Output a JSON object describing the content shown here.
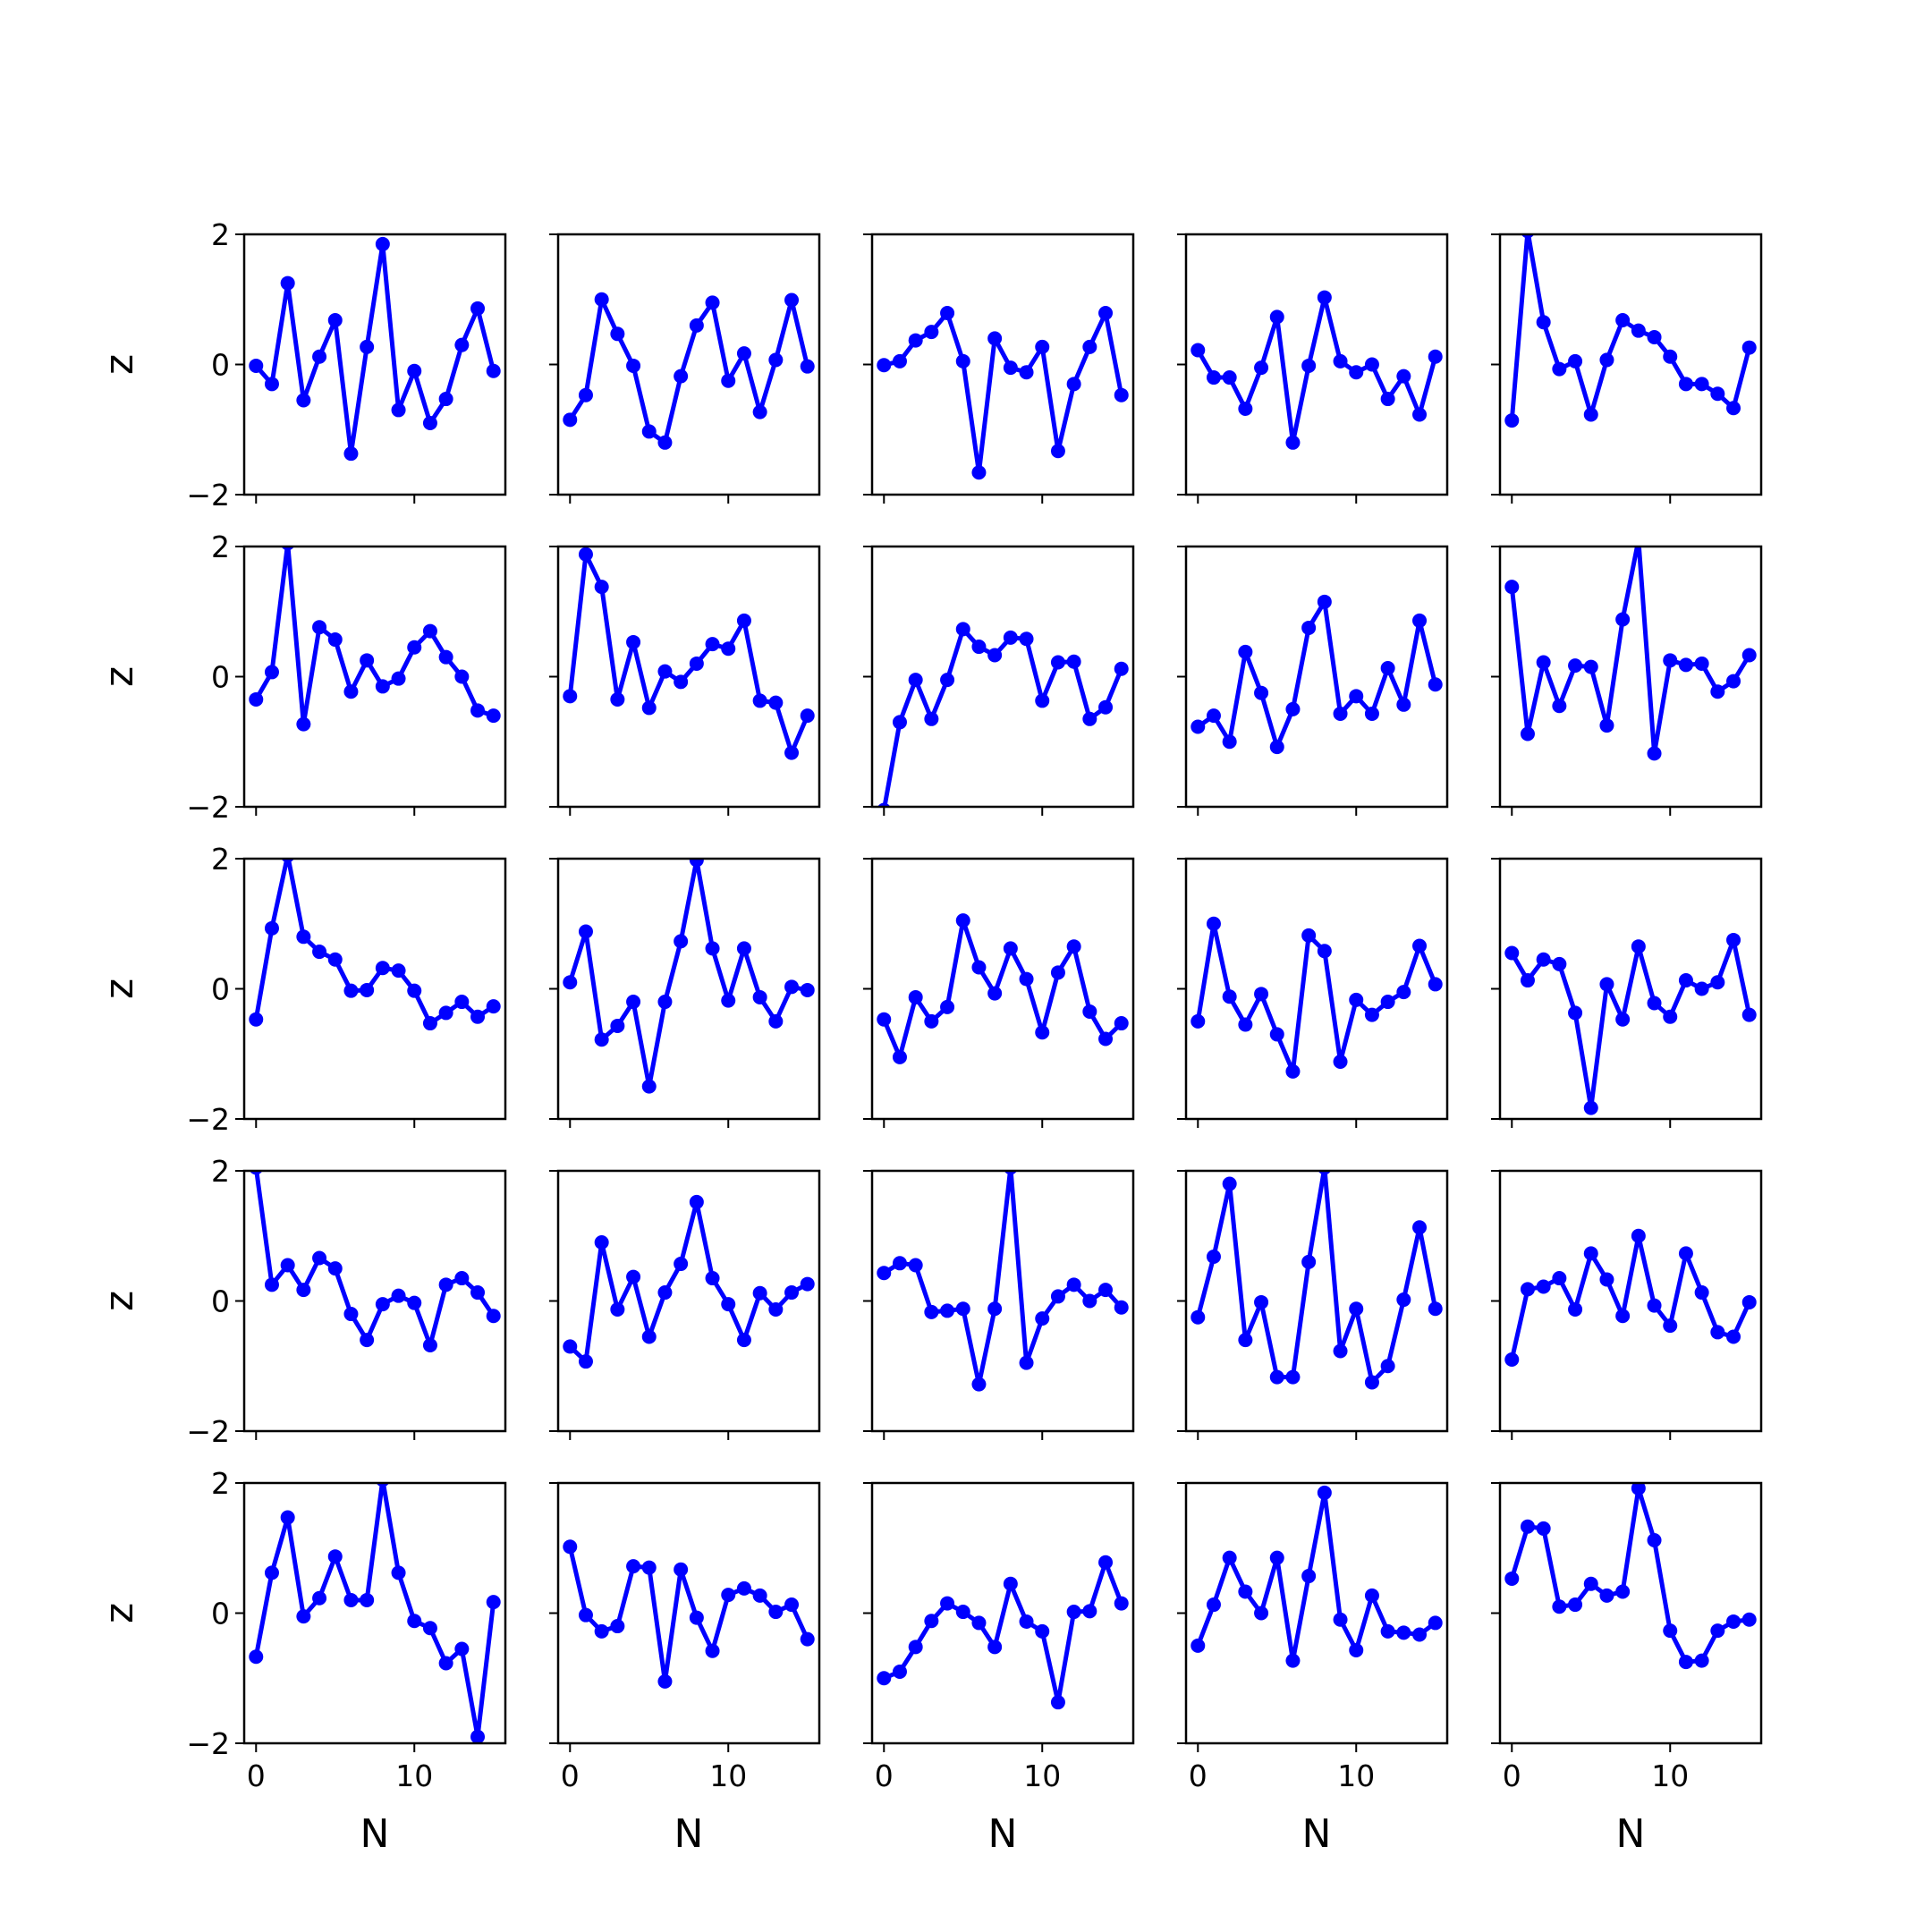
{
  "chart_data": {
    "type": "line",
    "layout": "5x5 grid of subplots",
    "xlabel": "N",
    "ylabel": "z",
    "xlim": [
      -0.75,
      15.75
    ],
    "ylim": [
      -2,
      2
    ],
    "xticks": [
      0,
      10
    ],
    "yticks": [
      -2,
      0,
      2
    ],
    "ytick_labels": [
      "−2",
      "0",
      "2"
    ],
    "xtick_labels": [
      "0",
      "10"
    ],
    "color": "#0000ff",
    "marker": "circle",
    "x": [
      0,
      1,
      2,
      3,
      4,
      5,
      6,
      7,
      8,
      9,
      10,
      11,
      12,
      13,
      14,
      15
    ],
    "panels": [
      {
        "row": 0,
        "col": 0,
        "values": [
          -0.02,
          -0.3,
          1.25,
          -0.55,
          0.12,
          0.68,
          -1.37,
          0.27,
          1.85,
          -0.7,
          -0.1,
          -0.9,
          -0.53,
          0.3,
          0.86,
          -0.1
        ]
      },
      {
        "row": 0,
        "col": 1,
        "values": [
          -0.85,
          -0.47,
          1.0,
          0.47,
          -0.02,
          -1.03,
          -1.2,
          -0.18,
          0.6,
          0.95,
          -0.25,
          0.17,
          -0.73,
          0.07,
          0.99,
          -0.03
        ]
      },
      {
        "row": 0,
        "col": 2,
        "values": [
          -0.01,
          0.05,
          0.37,
          0.5,
          0.79,
          0.05,
          -1.66,
          0.4,
          -0.05,
          -0.12,
          0.27,
          -1.33,
          -0.3,
          0.27,
          0.79,
          -0.47
        ]
      },
      {
        "row": 0,
        "col": 3,
        "values": [
          0.22,
          -0.2,
          -0.2,
          -0.68,
          -0.05,
          0.73,
          -1.2,
          -0.02,
          1.03,
          0.05,
          -0.12,
          0.0,
          -0.53,
          -0.18,
          -0.77,
          0.12
        ]
      },
      {
        "row": 0,
        "col": 4,
        "values": [
          -0.86,
          2.05,
          0.65,
          -0.07,
          0.05,
          -0.77,
          0.07,
          0.68,
          0.52,
          0.42,
          0.12,
          -0.3,
          -0.3,
          -0.45,
          -0.67,
          0.26
        ]
      },
      {
        "row": 1,
        "col": 0,
        "values": [
          -0.35,
          0.07,
          2.05,
          -0.73,
          0.76,
          0.57,
          -0.23,
          0.25,
          -0.15,
          -0.03,
          0.45,
          0.7,
          0.3,
          0.0,
          -0.52,
          -0.6
        ]
      },
      {
        "row": 1,
        "col": 1,
        "values": [
          -0.3,
          1.88,
          1.38,
          -0.35,
          0.53,
          -0.48,
          0.08,
          -0.08,
          0.2,
          0.5,
          0.43,
          0.86,
          -0.37,
          -0.4,
          -1.17,
          -0.6
        ]
      },
      {
        "row": 1,
        "col": 2,
        "values": [
          -2.05,
          -0.7,
          -0.05,
          -0.65,
          -0.05,
          0.73,
          0.46,
          0.33,
          0.6,
          0.58,
          -0.37,
          0.22,
          0.23,
          -0.65,
          -0.47,
          0.12
        ]
      },
      {
        "row": 1,
        "col": 3,
        "values": [
          -0.77,
          -0.6,
          -1.0,
          0.38,
          -0.25,
          -1.08,
          -0.5,
          0.75,
          1.15,
          -0.57,
          -0.3,
          -0.57,
          0.13,
          -0.43,
          0.86,
          -0.12
        ]
      },
      {
        "row": 1,
        "col": 4,
        "values": [
          1.38,
          -0.88,
          0.22,
          -0.45,
          0.17,
          0.15,
          -0.75,
          0.88,
          2.1,
          -1.18,
          0.25,
          0.18,
          0.2,
          -0.23,
          -0.07,
          0.33
        ]
      },
      {
        "row": 2,
        "col": 0,
        "values": [
          -0.47,
          0.93,
          2.05,
          0.8,
          0.57,
          0.45,
          -0.03,
          -0.02,
          0.32,
          0.28,
          -0.03,
          -0.53,
          -0.37,
          -0.2,
          -0.43,
          -0.27
        ]
      },
      {
        "row": 2,
        "col": 1,
        "values": [
          0.1,
          0.88,
          -0.78,
          -0.57,
          -0.2,
          -1.5,
          -0.2,
          0.73,
          1.98,
          0.62,
          -0.18,
          0.62,
          -0.13,
          -0.5,
          0.03,
          -0.02
        ]
      },
      {
        "row": 2,
        "col": 2,
        "values": [
          -0.47,
          -1.05,
          -0.13,
          -0.5,
          -0.28,
          1.05,
          0.33,
          -0.07,
          0.62,
          0.15,
          -0.67,
          0.25,
          0.65,
          -0.35,
          -0.77,
          -0.53
        ]
      },
      {
        "row": 2,
        "col": 3,
        "values": [
          -0.5,
          1.0,
          -0.12,
          -0.55,
          -0.08,
          -0.7,
          -1.27,
          0.82,
          0.58,
          -1.12,
          -0.17,
          -0.4,
          -0.2,
          -0.05,
          0.66,
          0.07
        ]
      },
      {
        "row": 2,
        "col": 4,
        "values": [
          0.55,
          0.13,
          0.45,
          0.38,
          -0.37,
          -1.83,
          0.07,
          -0.47,
          0.65,
          -0.22,
          -0.43,
          0.13,
          0.0,
          0.1,
          0.75,
          -0.4
        ]
      },
      {
        "row": 3,
        "col": 0,
        "values": [
          2.05,
          0.25,
          0.55,
          0.17,
          0.66,
          0.5,
          -0.2,
          -0.6,
          -0.05,
          0.08,
          -0.03,
          -0.68,
          0.25,
          0.35,
          0.13,
          -0.23
        ]
      },
      {
        "row": 3,
        "col": 1,
        "values": [
          -0.7,
          -0.93,
          0.9,
          -0.13,
          0.37,
          -0.55,
          0.13,
          0.57,
          1.52,
          0.35,
          -0.05,
          -0.6,
          0.12,
          -0.13,
          0.13,
          0.26
        ]
      },
      {
        "row": 3,
        "col": 2,
        "values": [
          0.43,
          0.58,
          0.55,
          -0.17,
          -0.15,
          -0.12,
          -1.28,
          -0.12,
          2.05,
          -0.95,
          -0.27,
          0.07,
          0.25,
          0.0,
          0.17,
          -0.1
        ]
      },
      {
        "row": 3,
        "col": 3,
        "values": [
          -0.25,
          0.68,
          1.8,
          -0.6,
          -0.02,
          -1.17,
          -1.17,
          0.6,
          2.05,
          -0.77,
          -0.12,
          -1.25,
          -1.0,
          0.02,
          1.13,
          -0.12
        ]
      },
      {
        "row": 3,
        "col": 4,
        "values": [
          -0.9,
          0.18,
          0.22,
          0.35,
          -0.13,
          0.73,
          0.33,
          -0.23,
          1.0,
          -0.07,
          -0.38,
          0.73,
          0.13,
          -0.48,
          -0.55,
          -0.02
        ]
      },
      {
        "row": 4,
        "col": 0,
        "values": [
          -0.67,
          0.62,
          1.47,
          -0.05,
          0.23,
          0.87,
          0.2,
          0.2,
          2.05,
          0.62,
          -0.12,
          -0.23,
          -0.77,
          -0.55,
          -1.9,
          0.17
        ]
      },
      {
        "row": 4,
        "col": 1,
        "values": [
          1.02,
          -0.03,
          -0.28,
          -0.2,
          0.72,
          0.7,
          -1.05,
          0.67,
          -0.07,
          -0.58,
          0.28,
          0.38,
          0.27,
          0.02,
          0.13,
          -0.4
        ]
      },
      {
        "row": 4,
        "col": 2,
        "values": [
          -1.0,
          -0.9,
          -0.52,
          -0.12,
          0.15,
          0.02,
          -0.15,
          -0.52,
          0.45,
          -0.13,
          -0.28,
          -1.37,
          0.02,
          0.03,
          0.78,
          0.15
        ]
      },
      {
        "row": 4,
        "col": 3,
        "values": [
          -0.5,
          0.13,
          0.85,
          0.33,
          0.0,
          0.85,
          -0.73,
          0.57,
          1.85,
          -0.1,
          -0.57,
          0.27,
          -0.28,
          -0.3,
          -0.33,
          -0.15
        ]
      },
      {
        "row": 4,
        "col": 4,
        "values": [
          0.53,
          1.33,
          1.3,
          0.1,
          0.13,
          0.45,
          0.27,
          0.33,
          1.92,
          1.12,
          -0.27,
          -0.75,
          -0.73,
          -0.27,
          -0.13,
          -0.1
        ]
      }
    ]
  }
}
